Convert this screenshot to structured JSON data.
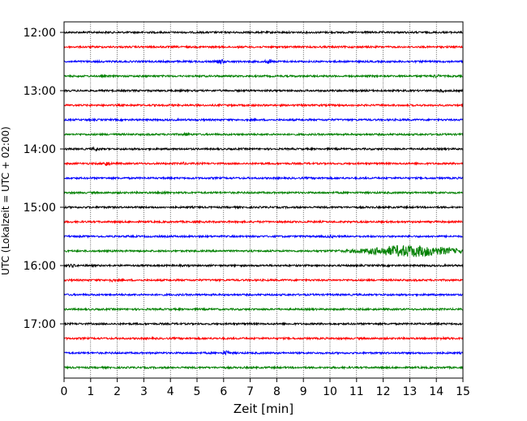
{
  "chart_data": {
    "type": "line",
    "title": "",
    "xlabel": "Zeit  [min]",
    "ylabel": "UTC (Lokalzeit = UTC + 02:00)",
    "xlim": [
      0,
      15
    ],
    "x_ticks": [
      "0",
      "1",
      "2",
      "3",
      "4",
      "5",
      "6",
      "7",
      "8",
      "9",
      "10",
      "11",
      "12",
      "13",
      "14",
      "15"
    ],
    "y_ticks": [
      "12:00",
      "13:00",
      "14:00",
      "15:00",
      "16:00",
      "17:00"
    ],
    "trace_interval_minutes": 15,
    "first_trace": "12:00",
    "last_trace": "17:45",
    "trace_colors": [
      "#000000",
      "#ff0000",
      "#0000ff",
      "#008000"
    ],
    "grid": "vertical dotted",
    "traces": [
      {
        "start": "12:00",
        "color": "#000000",
        "events": []
      },
      {
        "start": "12:15",
        "color": "#ff0000",
        "events": []
      },
      {
        "start": "12:30",
        "color": "#0000ff",
        "events": [
          {
            "t": 5.9,
            "amp": 2.5
          },
          {
            "t": 7.7,
            "amp": 2.2
          }
        ]
      },
      {
        "start": "12:45",
        "color": "#008000",
        "events": [
          {
            "t": 14.0,
            "amp": 1.8
          }
        ]
      },
      {
        "start": "13:00",
        "color": "#000000",
        "events": [
          {
            "t": 14.2,
            "amp": 1.8
          }
        ]
      },
      {
        "start": "13:15",
        "color": "#ff0000",
        "events": []
      },
      {
        "start": "13:30",
        "color": "#0000ff",
        "events": []
      },
      {
        "start": "13:45",
        "color": "#008000",
        "events": [
          {
            "t": 4.6,
            "amp": 1.6
          }
        ]
      },
      {
        "start": "14:00",
        "color": "#000000",
        "events": [
          {
            "t": 1.2,
            "amp": 1.8
          }
        ]
      },
      {
        "start": "14:15",
        "color": "#ff0000",
        "events": [
          {
            "t": 1.6,
            "amp": 2.4
          },
          {
            "t": 4.5,
            "amp": 1.5
          }
        ]
      },
      {
        "start": "14:30",
        "color": "#0000ff",
        "events": []
      },
      {
        "start": "14:45",
        "color": "#008000",
        "events": [
          {
            "t": 3.7,
            "amp": 1.6
          }
        ]
      },
      {
        "start": "15:00",
        "color": "#000000",
        "events": []
      },
      {
        "start": "15:15",
        "color": "#ff0000",
        "events": []
      },
      {
        "start": "15:30",
        "color": "#0000ff",
        "events": [
          {
            "t": 10.0,
            "amp": 1.6
          }
        ]
      },
      {
        "start": "15:45",
        "color": "#008000",
        "events": [
          {
            "t": 13.0,
            "amp": 5.0,
            "width": 1.6
          }
        ]
      },
      {
        "start": "16:00",
        "color": "#000000",
        "events": [
          {
            "t": 0.3,
            "amp": 1.8
          }
        ]
      },
      {
        "start": "16:15",
        "color": "#ff0000",
        "events": [
          {
            "t": 1.8,
            "amp": 1.6
          }
        ]
      },
      {
        "start": "16:30",
        "color": "#0000ff",
        "events": []
      },
      {
        "start": "16:45",
        "color": "#008000",
        "events": []
      },
      {
        "start": "17:00",
        "color": "#000000",
        "events": []
      },
      {
        "start": "17:15",
        "color": "#ff0000",
        "events": [
          {
            "t": 14.3,
            "amp": 1.5
          }
        ]
      },
      {
        "start": "17:30",
        "color": "#0000ff",
        "events": [
          {
            "t": 6.1,
            "amp": 2.2
          }
        ]
      },
      {
        "start": "17:45",
        "color": "#008000",
        "events": []
      }
    ]
  }
}
